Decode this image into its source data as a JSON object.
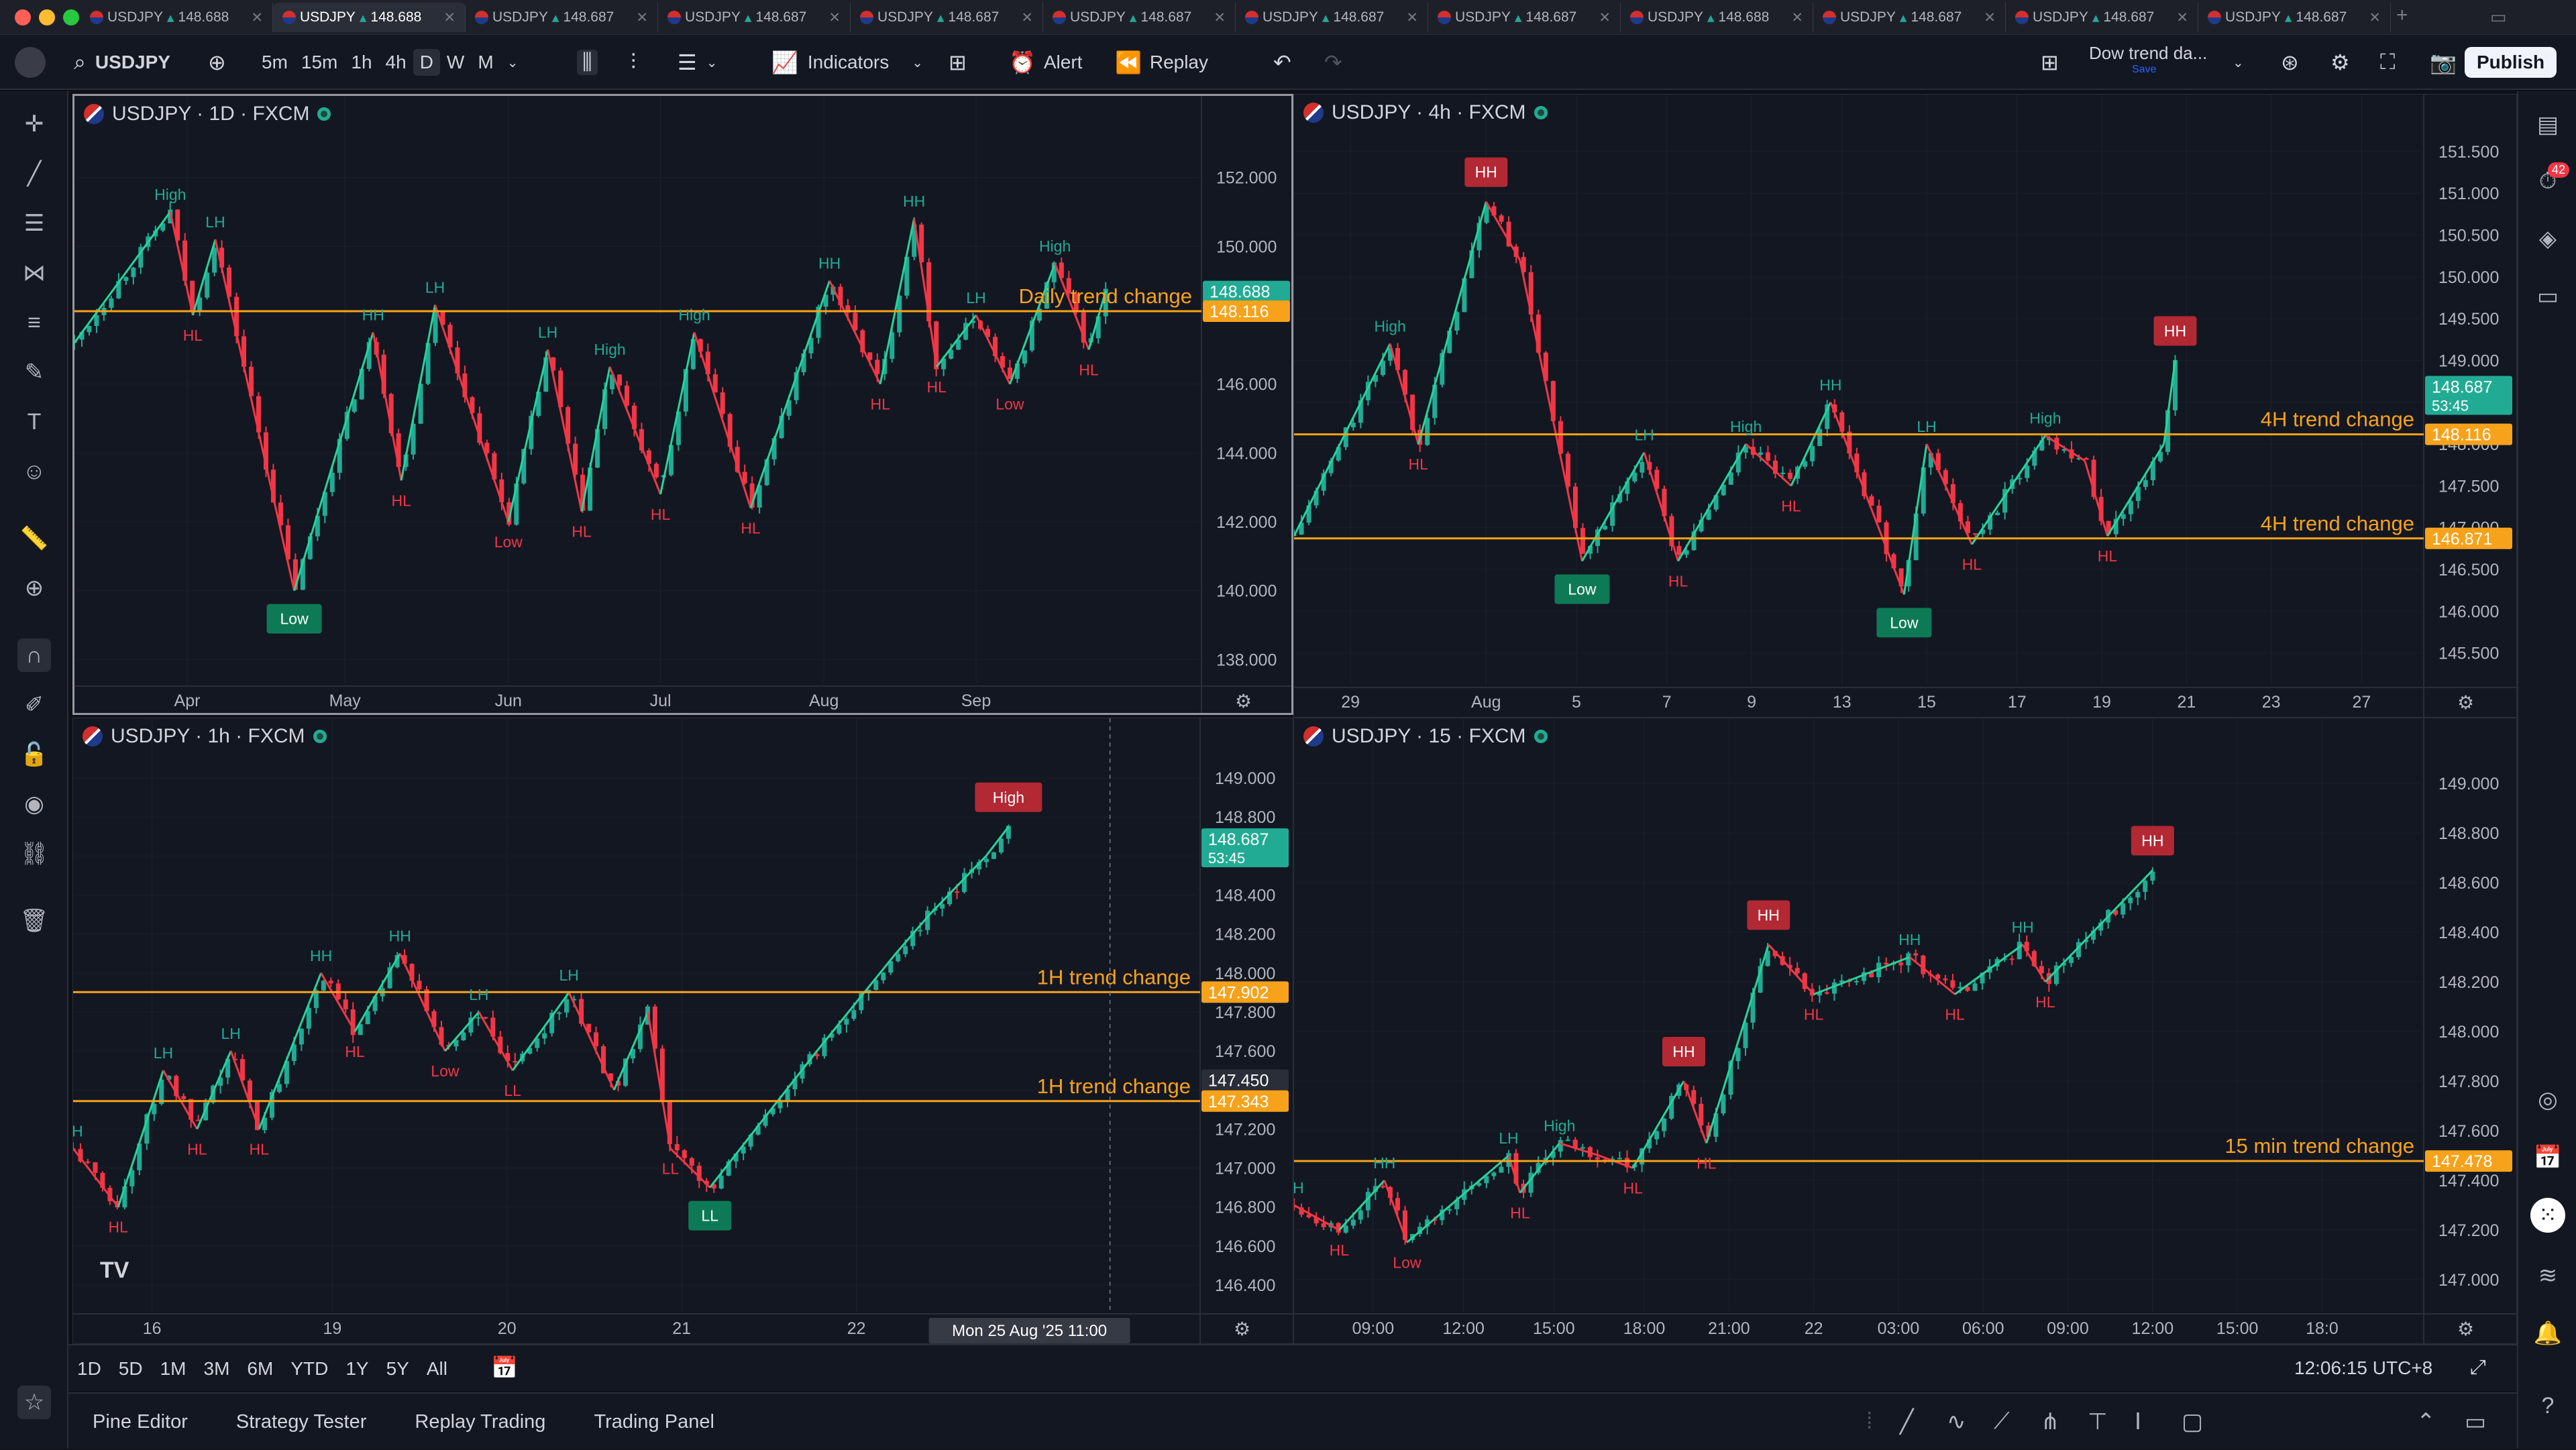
{
  "tabs": [
    {
      "symbol": "USDJPY",
      "price": "148.688",
      "active": false
    },
    {
      "symbol": "USDJPY",
      "price": "148.688",
      "active": true
    },
    {
      "symbol": "USDJPY",
      "price": "148.687",
      "active": false
    },
    {
      "symbol": "USDJPY",
      "price": "148.687",
      "active": false
    },
    {
      "symbol": "USDJPY",
      "price": "148.687",
      "active": false
    },
    {
      "symbol": "USDJPY",
      "price": "148.687",
      "active": false
    },
    {
      "symbol": "USDJPY",
      "price": "148.687",
      "active": false
    },
    {
      "symbol": "USDJPY",
      "price": "148.687",
      "active": false
    },
    {
      "symbol": "USDJPY",
      "price": "148.688",
      "active": false
    },
    {
      "symbol": "USDJPY",
      "price": "148.687",
      "active": false
    },
    {
      "symbol": "USDJPY",
      "price": "148.687",
      "active": false
    },
    {
      "symbol": "USDJPY",
      "price": "148.687",
      "active": false
    }
  ],
  "toolbar": {
    "symbol": "USDJPY",
    "intervals": [
      "5m",
      "15m",
      "1h",
      "4h",
      "D",
      "W",
      "M"
    ],
    "active_interval": "D",
    "indicators": "Indicators",
    "alert": "Alert",
    "replay": "Replay",
    "layout_name": "Dow trend da...",
    "layout_save": "Save",
    "publish": "Publish"
  },
  "right_badge": "42",
  "bottom": {
    "ranges": [
      "1D",
      "5D",
      "1M",
      "3M",
      "6M",
      "YTD",
      "1Y",
      "5Y",
      "All"
    ],
    "clock": "12:06:15 UTC+8"
  },
  "footer_tabs": [
    "Pine Editor",
    "Strategy Tester",
    "Replay Trading",
    "Trading Panel"
  ],
  "panes": [
    {
      "id": "daily",
      "title": "USDJPY · 1D · FXCM",
      "y_ticks": [
        "152.000",
        "150.000",
        "148.000",
        "146.000",
        "144.000",
        "142.000",
        "140.000",
        "138.000"
      ],
      "y_range": [
        137.5,
        153.2
      ],
      "x_ticks": [
        "Apr",
        "May",
        "Jun",
        "Jul",
        "Aug",
        "Sep"
      ],
      "x_tick_pos": [
        0.1,
        0.24,
        0.385,
        0.52,
        0.665,
        0.8
      ],
      "price_tags": [
        {
          "value": "148.688",
          "color": "#22ab94",
          "sub": ""
        },
        {
          "value": "148.116",
          "color": "#f7a21b",
          "sub": ""
        }
      ],
      "trend_lines": [
        {
          "value": 148.116,
          "label": "Daily trend change"
        }
      ],
      "zigzag": [
        [
          0.0,
          147.2
        ],
        [
          0.085,
          151.0
        ],
        [
          0.105,
          148.0
        ],
        [
          0.125,
          150.2
        ],
        [
          0.195,
          140.0
        ],
        [
          0.265,
          147.5
        ],
        [
          0.29,
          143.2
        ],
        [
          0.32,
          148.3
        ],
        [
          0.385,
          142.0
        ],
        [
          0.42,
          147.0
        ],
        [
          0.45,
          142.3
        ],
        [
          0.475,
          146.5
        ],
        [
          0.52,
          142.8
        ],
        [
          0.55,
          147.5
        ],
        [
          0.6,
          142.4
        ],
        [
          0.67,
          149.0
        ],
        [
          0.715,
          146.0
        ],
        [
          0.745,
          150.8
        ],
        [
          0.765,
          146.5
        ],
        [
          0.8,
          148.0
        ],
        [
          0.83,
          146.0
        ],
        [
          0.87,
          149.5
        ],
        [
          0.9,
          147.0
        ],
        [
          0.915,
          148.7
        ]
      ],
      "labels": [
        {
          "t": "High",
          "i": 1,
          "up": true
        },
        {
          "t": "LH",
          "i": 3,
          "up": true
        },
        {
          "t": "HL",
          "i": 2,
          "up": false
        },
        {
          "t": "Low",
          "i": 4,
          "up": false,
          "box": true
        },
        {
          "t": "HH",
          "i": 5,
          "up": true
        },
        {
          "t": "HL",
          "i": 6,
          "up": false
        },
        {
          "t": "LH",
          "i": 7,
          "up": true
        },
        {
          "t": "Low",
          "i": 8,
          "up": false
        },
        {
          "t": "LH",
          "i": 9,
          "up": true
        },
        {
          "t": "HL",
          "i": 10,
          "up": false
        },
        {
          "t": "High",
          "i": 11,
          "up": true
        },
        {
          "t": "HL",
          "i": 12,
          "up": false
        },
        {
          "t": "High",
          "i": 13,
          "up": true
        },
        {
          "t": "HL",
          "i": 14,
          "up": false
        },
        {
          "t": "HH",
          "i": 15,
          "up": true
        },
        {
          "t": "HL",
          "i": 16,
          "up": false
        },
        {
          "t": "HH",
          "i": 17,
          "up": true
        },
        {
          "t": "HL",
          "i": 18,
          "up": false
        },
        {
          "t": "LH",
          "i": 19,
          "up": true
        },
        {
          "t": "Low",
          "i": 20,
          "up": false
        },
        {
          "t": "High",
          "i": 21,
          "up": true
        },
        {
          "t": "HL",
          "i": 22,
          "up": false
        }
      ]
    },
    {
      "id": "h4",
      "title": "USDJPY · 4h · FXCM",
      "y_ticks": [
        "151.500",
        "151.000",
        "150.500",
        "150.000",
        "149.500",
        "149.000",
        "148.500",
        "148.000",
        "147.500",
        "147.000",
        "146.500",
        "146.000",
        "145.500"
      ],
      "y_range": [
        145.2,
        151.7
      ],
      "x_ticks": [
        "29",
        "Aug",
        "5",
        "7",
        "9",
        "13",
        "15",
        "17",
        "19",
        "21",
        "23",
        "27"
      ],
      "x_tick_pos": [
        0.05,
        0.17,
        0.25,
        0.33,
        0.405,
        0.485,
        0.56,
        0.64,
        0.715,
        0.79,
        0.865,
        0.945
      ],
      "price_tags": [
        {
          "value": "148.687",
          "color": "#22ab94",
          "sub": "53:45"
        },
        {
          "value": "148.116",
          "color": "#f7a21b",
          "sub": ""
        },
        {
          "value": "146.871",
          "color": "#f7a21b",
          "sub": ""
        }
      ],
      "trend_lines": [
        {
          "value": 148.116,
          "label": "4H trend change"
        },
        {
          "value": 146.871,
          "label": "4H trend change"
        }
      ],
      "zigzag": [
        [
          0.0,
          146.9
        ],
        [
          0.085,
          149.2
        ],
        [
          0.11,
          148.0
        ],
        [
          0.17,
          150.9
        ],
        [
          0.2,
          150.2
        ],
        [
          0.255,
          146.6
        ],
        [
          0.31,
          147.9
        ],
        [
          0.34,
          146.6
        ],
        [
          0.4,
          148.0
        ],
        [
          0.44,
          147.5
        ],
        [
          0.475,
          148.5
        ],
        [
          0.54,
          146.2
        ],
        [
          0.56,
          148.0
        ],
        [
          0.6,
          146.8
        ],
        [
          0.665,
          148.1
        ],
        [
          0.7,
          147.8
        ],
        [
          0.72,
          146.9
        ],
        [
          0.77,
          148.0
        ],
        [
          0.78,
          149.0
        ]
      ],
      "labels": [
        {
          "t": "High",
          "i": 1,
          "up": true
        },
        {
          "t": "HL",
          "i": 2,
          "up": false
        },
        {
          "t": "HH",
          "i": 3,
          "up": true,
          "box": true
        },
        {
          "t": "Low",
          "i": 5,
          "up": false,
          "box": true
        },
        {
          "t": "LH",
          "i": 6,
          "up": true
        },
        {
          "t": "HL",
          "i": 7,
          "up": false
        },
        {
          "t": "High",
          "i": 8,
          "up": true
        },
        {
          "t": "HL",
          "i": 9,
          "up": false
        },
        {
          "t": "HH",
          "i": 10,
          "up": true
        },
        {
          "t": "Low",
          "i": 11,
          "up": false,
          "box": true
        },
        {
          "t": "LH",
          "i": 12,
          "up": true
        },
        {
          "t": "HL",
          "i": 13,
          "up": false
        },
        {
          "t": "High",
          "i": 14,
          "up": true
        },
        {
          "t": "HL",
          "i": 16,
          "up": false
        },
        {
          "t": "HH",
          "i": 18,
          "up": true,
          "box": true
        }
      ]
    },
    {
      "id": "h1",
      "title": "USDJPY · 1h · FXCM",
      "y_ticks": [
        "149.000",
        "148.800",
        "148.600",
        "148.400",
        "148.200",
        "148.000",
        "147.800",
        "147.600",
        "147.400",
        "147.200",
        "147.000",
        "146.800",
        "146.600",
        "146.400"
      ],
      "y_range": [
        146.3,
        149.1
      ],
      "x_ticks": [
        "16",
        "19",
        "20",
        "21",
        "22"
      ],
      "x_tick_pos": [
        0.07,
        0.23,
        0.385,
        0.54,
        0.695
      ],
      "price_tags": [
        {
          "value": "148.687",
          "color": "#22ab94",
          "sub": "53:45"
        },
        {
          "value": "147.902",
          "color": "#f7a21b",
          "sub": ""
        },
        {
          "value": "147.450",
          "color": "#2a2e39",
          "sub": ""
        },
        {
          "value": "147.343",
          "color": "#f7a21b",
          "sub": ""
        }
      ],
      "trend_lines": [
        {
          "value": 147.902,
          "label": "1H trend change"
        },
        {
          "value": 147.343,
          "label": "1H trend change"
        }
      ],
      "zigzag": [
        [
          0.0,
          147.1
        ],
        [
          0.04,
          146.8
        ],
        [
          0.08,
          147.5
        ],
        [
          0.11,
          147.2
        ],
        [
          0.14,
          147.6
        ],
        [
          0.165,
          147.2
        ],
        [
          0.22,
          148.0
        ],
        [
          0.25,
          147.7
        ],
        [
          0.29,
          148.1
        ],
        [
          0.33,
          147.6
        ],
        [
          0.36,
          147.8
        ],
        [
          0.39,
          147.5
        ],
        [
          0.44,
          147.9
        ],
        [
          0.48,
          147.4
        ],
        [
          0.51,
          147.8
        ],
        [
          0.53,
          147.1
        ],
        [
          0.565,
          146.9
        ],
        [
          0.66,
          147.6
        ],
        [
          0.73,
          148.1
        ],
        [
          0.76,
          148.3
        ],
        [
          0.81,
          148.6
        ],
        [
          0.83,
          148.75
        ]
      ],
      "labels": [
        {
          "t": "LH",
          "i": 0,
          "up": true
        },
        {
          "t": "HL",
          "i": 1,
          "up": false
        },
        {
          "t": "LH",
          "i": 2,
          "up": true
        },
        {
          "t": "HL",
          "i": 3,
          "up": false
        },
        {
          "t": "LH",
          "i": 4,
          "up": true
        },
        {
          "t": "HL",
          "i": 5,
          "up": false
        },
        {
          "t": "HH",
          "i": 6,
          "up": true
        },
        {
          "t": "HL",
          "i": 7,
          "up": false
        },
        {
          "t": "HH",
          "i": 8,
          "up": true
        },
        {
          "t": "Low",
          "i": 9,
          "up": false
        },
        {
          "t": "LH",
          "i": 10,
          "up": true
        },
        {
          "t": "LL",
          "i": 11,
          "up": false
        },
        {
          "t": "LH",
          "i": 12,
          "up": true
        },
        {
          "t": "LL",
          "i": 15,
          "up": false
        },
        {
          "t": "LL",
          "i": 16,
          "up": false,
          "box": true
        },
        {
          "t": "High",
          "i": 21,
          "up": true,
          "box": true
        }
      ],
      "crosshair_time": "Mon 25 Aug '25   11:00"
    },
    {
      "id": "m15",
      "title": "USDJPY · 15 · FXCM",
      "y_ticks": [
        "149.000",
        "148.800",
        "148.600",
        "148.400",
        "148.200",
        "148.000",
        "147.800",
        "147.600",
        "147.400",
        "147.200",
        "147.000"
      ],
      "y_range": [
        146.9,
        149.1
      ],
      "x_ticks": [
        "09:00",
        "12:00",
        "15:00",
        "18:00",
        "21:00",
        "22",
        "03:00",
        "06:00",
        "09:00",
        "12:00",
        "15:00",
        "18:0"
      ],
      "x_tick_pos": [
        0.07,
        0.15,
        0.23,
        0.31,
        0.385,
        0.46,
        0.535,
        0.61,
        0.685,
        0.76,
        0.835,
        0.91
      ],
      "price_tags": [
        {
          "value": "147.478",
          "color": "#f7a21b",
          "sub": ""
        }
      ],
      "trend_lines": [
        {
          "value": 147.478,
          "label": "15 min trend change"
        }
      ],
      "zigzag": [
        [
          0.0,
          147.3
        ],
        [
          0.04,
          147.2
        ],
        [
          0.08,
          147.4
        ],
        [
          0.1,
          147.15
        ],
        [
          0.19,
          147.5
        ],
        [
          0.2,
          147.35
        ],
        [
          0.235,
          147.55
        ],
        [
          0.27,
          147.5
        ],
        [
          0.3,
          147.45
        ],
        [
          0.345,
          147.8
        ],
        [
          0.365,
          147.55
        ],
        [
          0.42,
          148.35
        ],
        [
          0.46,
          148.15
        ],
        [
          0.545,
          148.3
        ],
        [
          0.585,
          148.15
        ],
        [
          0.645,
          148.35
        ],
        [
          0.665,
          148.2
        ],
        [
          0.76,
          148.65
        ]
      ],
      "labels": [
        {
          "t": "LH",
          "i": 0,
          "up": true
        },
        {
          "t": "HL",
          "i": 1,
          "up": false
        },
        {
          "t": "HH",
          "i": 2,
          "up": true
        },
        {
          "t": "Low",
          "i": 3,
          "up": false
        },
        {
          "t": "HL",
          "i": 5,
          "up": false
        },
        {
          "t": "LH",
          "i": 4,
          "up": true
        },
        {
          "t": "High",
          "i": 6,
          "up": true
        },
        {
          "t": "HL",
          "i": 8,
          "up": false
        },
        {
          "t": "HH",
          "i": 9,
          "up": true,
          "box": true
        },
        {
          "t": "HL",
          "i": 10,
          "up": false
        },
        {
          "t": "HH",
          "i": 11,
          "up": true,
          "box": true
        },
        {
          "t": "HL",
          "i": 12,
          "up": false
        },
        {
          "t": "HH",
          "i": 13,
          "up": true
        },
        {
          "t": "HL",
          "i": 14,
          "up": false
        },
        {
          "t": "HH",
          "i": 15,
          "up": true
        },
        {
          "t": "HL",
          "i": 16,
          "up": false
        },
        {
          "t": "HH",
          "i": 17,
          "up": true,
          "box": true
        }
      ]
    }
  ],
  "colors": {
    "bull": "#22ab94",
    "bear": "#f23645",
    "trend": "#f7a21b",
    "zig_up": "#26d49a",
    "zig_dn": "#f23645"
  }
}
